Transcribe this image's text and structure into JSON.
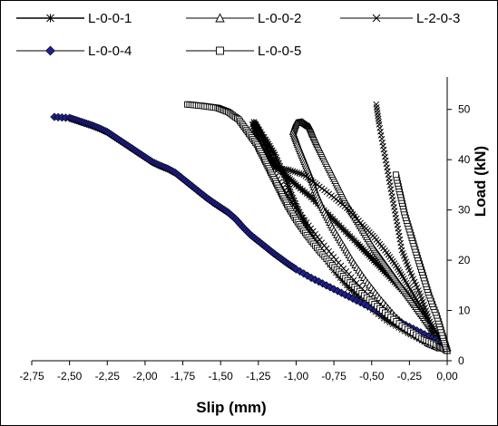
{
  "chart_data": {
    "type": "scatter",
    "title": "",
    "xlabel": "Slip (mm)",
    "ylabel": "Load (kN)",
    "xlim": [
      -2.75,
      0.0
    ],
    "ylim": [
      0,
      55
    ],
    "x_ticks": [
      "-2,75",
      "-2,50",
      "-2,25",
      "-2,00",
      "-1,75",
      "-1,50",
      "-1,25",
      "-1,00",
      "-0,75",
      "-0,50",
      "-0,25",
      "0,00"
    ],
    "y_ticks": [
      "0",
      "10",
      "20",
      "30",
      "40",
      "50"
    ],
    "legend_position": "top",
    "series": [
      {
        "name": "L-0-0-1",
        "marker": "asterisk",
        "points": [
          [
            0,
            2
          ],
          [
            -0.04,
            4
          ],
          [
            -0.09,
            6
          ],
          [
            -0.15,
            8.5
          ],
          [
            -0.21,
            11
          ],
          [
            -0.28,
            13.5
          ],
          [
            -0.36,
            16
          ],
          [
            -0.44,
            18.5
          ],
          [
            -0.52,
            21
          ],
          [
            -0.6,
            23.5
          ],
          [
            -0.7,
            26.5
          ],
          [
            -0.8,
            29.5
          ],
          [
            -0.9,
            32.5
          ],
          [
            -1.0,
            35
          ],
          [
            -1.07,
            37
          ],
          [
            -1.13,
            38.5
          ],
          [
            -1.16,
            40
          ],
          [
            -1.19,
            42
          ],
          [
            -1.22,
            44
          ],
          [
            -1.25,
            46
          ],
          [
            -1.28,
            47.5
          ],
          [
            -1.2,
            44
          ],
          [
            -1.14,
            41
          ],
          [
            -1.08,
            37
          ],
          [
            -1.03,
            33
          ],
          [
            -0.97,
            29
          ],
          [
            -0.91,
            25.5
          ],
          [
            -0.84,
            22
          ],
          [
            -0.75,
            18
          ],
          [
            -0.65,
            14.5
          ],
          [
            -0.53,
            11
          ],
          [
            -0.4,
            8
          ],
          [
            -0.26,
            5.5
          ],
          [
            -0.13,
            3.5
          ],
          [
            -0.05,
            2.5
          ]
        ]
      },
      {
        "name": "L-0-0-2",
        "marker": "triangle",
        "points": [
          [
            0,
            2
          ],
          [
            -0.03,
            3.5
          ],
          [
            -0.08,
            5.5
          ],
          [
            -0.13,
            7.5
          ],
          [
            -0.19,
            10
          ],
          [
            -0.25,
            12.5
          ],
          [
            -0.31,
            15
          ],
          [
            -0.37,
            17.5
          ],
          [
            -0.43,
            20
          ],
          [
            -0.49,
            22.5
          ],
          [
            -0.55,
            25.5
          ],
          [
            -0.61,
            28.5
          ],
          [
            -0.67,
            31.5
          ],
          [
            -0.72,
            34.5
          ],
          [
            -0.77,
            37.5
          ],
          [
            -0.82,
            40.5
          ],
          [
            -0.86,
            43
          ],
          [
            -0.89,
            45
          ],
          [
            -0.91,
            46.5
          ],
          [
            -0.96,
            47.5
          ],
          [
            -1.0,
            47.3
          ],
          [
            -1.02,
            45.5
          ],
          [
            -0.99,
            43
          ],
          [
            -0.95,
            40
          ],
          [
            -0.91,
            37
          ],
          [
            -0.87,
            33.5
          ],
          [
            -0.82,
            30
          ],
          [
            -0.76,
            26.5
          ],
          [
            -0.69,
            23
          ],
          [
            -0.62,
            19.5
          ],
          [
            -0.54,
            16
          ],
          [
            -0.45,
            12.5
          ],
          [
            -0.35,
            9
          ],
          [
            -0.24,
            6
          ],
          [
            -0.13,
            3.5
          ],
          [
            -0.05,
            2.5
          ]
        ]
      },
      {
        "name": "L-2-0-3",
        "marker": "x",
        "points": [
          [
            0,
            2
          ],
          [
            -0.04,
            4
          ],
          [
            -0.09,
            6.5
          ],
          [
            -0.15,
            9.5
          ],
          [
            -0.21,
            12.5
          ],
          [
            -0.27,
            15.5
          ],
          [
            -0.33,
            18.5
          ],
          [
            -0.4,
            21.5
          ],
          [
            -0.48,
            24.5
          ],
          [
            -0.56,
            27
          ],
          [
            -0.65,
            30
          ],
          [
            -0.75,
            32.5
          ],
          [
            -0.86,
            35
          ],
          [
            -0.95,
            37
          ],
          [
            -1.05,
            38
          ],
          [
            -1.15,
            38.5
          ],
          [
            -1.2,
            41
          ],
          [
            -1.25,
            44
          ],
          [
            -1.29,
            47
          ],
          [
            -1.25,
            43
          ],
          [
            -1.18,
            39
          ],
          [
            -1.1,
            35
          ],
          [
            -1.02,
            31
          ],
          [
            -0.93,
            27.5
          ],
          [
            -0.83,
            23.5
          ],
          [
            -0.72,
            19.5
          ],
          [
            -0.6,
            15.5
          ],
          [
            -0.47,
            11.5
          ],
          [
            -0.33,
            8
          ],
          [
            -0.2,
            5
          ],
          [
            -0.08,
            3
          ],
          [
            -0.1,
            6
          ],
          [
            -0.14,
            10
          ],
          [
            -0.19,
            14
          ],
          [
            -0.25,
            18
          ],
          [
            -0.3,
            22
          ],
          [
            -0.33,
            27
          ],
          [
            -0.36,
            32
          ],
          [
            -0.39,
            37
          ],
          [
            -0.42,
            42
          ],
          [
            -0.45,
            47
          ],
          [
            -0.47,
            51
          ]
        ]
      },
      {
        "name": "L-0-0-4",
        "marker": "diamond",
        "points": [
          [
            -2.6,
            48.5
          ],
          [
            -2.5,
            48.3
          ],
          [
            -2.45,
            47.8
          ],
          [
            -2.4,
            47.3
          ],
          [
            -2.35,
            46.8
          ],
          [
            -2.3,
            46.2
          ],
          [
            -2.25,
            45.5
          ],
          [
            -2.2,
            44.5
          ],
          [
            -2.15,
            43.5
          ],
          [
            -2.1,
            42.5
          ],
          [
            -2.05,
            41.5
          ],
          [
            -2.0,
            40.5
          ],
          [
            -1.95,
            39.5
          ],
          [
            -1.9,
            38.8
          ],
          [
            -1.85,
            38.2
          ],
          [
            -1.8,
            37.4
          ],
          [
            -1.75,
            36.2
          ],
          [
            -1.7,
            35
          ],
          [
            -1.65,
            33.8
          ],
          [
            -1.6,
            32.6
          ],
          [
            -1.55,
            31.5
          ],
          [
            -1.5,
            30.5
          ],
          [
            -1.45,
            29.5
          ],
          [
            -1.4,
            28.2
          ],
          [
            -1.35,
            26.5
          ],
          [
            -1.3,
            25
          ],
          [
            -1.25,
            23.8
          ],
          [
            -1.2,
            22.6
          ],
          [
            -1.15,
            21.4
          ],
          [
            -1.1,
            20.3
          ],
          [
            -1.05,
            19.2
          ],
          [
            -1.0,
            18.2
          ],
          [
            -0.9,
            16.5
          ],
          [
            -0.8,
            15
          ],
          [
            -0.7,
            13.5
          ],
          [
            -0.6,
            12
          ],
          [
            -0.5,
            10.5
          ],
          [
            -0.4,
            9
          ],
          [
            -0.3,
            7.5
          ],
          [
            -0.2,
            6
          ],
          [
            -0.1,
            4.5
          ],
          [
            -0.03,
            3
          ],
          [
            0,
            2
          ]
        ]
      },
      {
        "name": "L-0-0-5",
        "marker": "square",
        "points": [
          [
            -1.72,
            51
          ],
          [
            -1.62,
            50.7
          ],
          [
            -1.52,
            50.3
          ],
          [
            -1.45,
            49.5
          ],
          [
            -1.38,
            48
          ],
          [
            -1.32,
            45.5
          ],
          [
            -1.26,
            43
          ],
          [
            -1.21,
            40
          ],
          [
            -1.16,
            37
          ],
          [
            -1.11,
            34
          ],
          [
            -1.06,
            31
          ],
          [
            -1.0,
            28
          ],
          [
            -0.93,
            25
          ],
          [
            -0.85,
            22
          ],
          [
            -0.76,
            19
          ],
          [
            -0.66,
            16
          ],
          [
            -0.55,
            13
          ],
          [
            -0.43,
            10
          ],
          [
            -0.3,
            7
          ],
          [
            -0.17,
            4.5
          ],
          [
            -0.06,
            3
          ],
          [
            0,
            2
          ],
          [
            -0.03,
            5
          ],
          [
            -0.07,
            9
          ],
          [
            -0.12,
            13
          ],
          [
            -0.16,
            17
          ],
          [
            -0.2,
            21
          ],
          [
            -0.24,
            25
          ],
          [
            -0.28,
            29
          ],
          [
            -0.31,
            33
          ],
          [
            -0.34,
            37
          ]
        ]
      }
    ]
  }
}
